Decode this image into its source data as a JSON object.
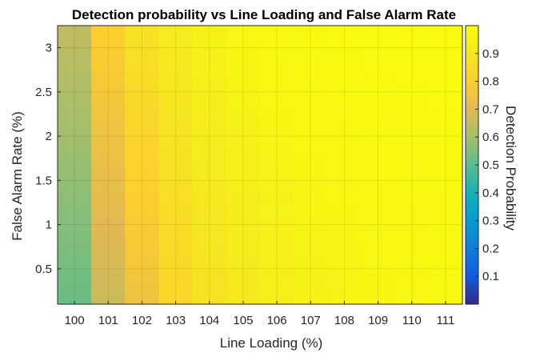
{
  "chart_data": {
    "type": "heatmap",
    "title": "Detection probability vs Line Loading and False Alarm Rate",
    "xlabel": "Line Loading (%)",
    "ylabel": "False Alarm Rate (%)",
    "colorbar_label": "Detection Probability",
    "x_categories": [
      "100",
      "101",
      "102",
      "103",
      "104",
      "105",
      "106",
      "107",
      "108",
      "109",
      "110",
      "111"
    ],
    "y_values": [
      0.1,
      0.25,
      0.4,
      0.55,
      0.7,
      0.85,
      1.0,
      1.15,
      1.3,
      1.45,
      1.6,
      1.75,
      1.9,
      2.05,
      2.2,
      2.35,
      2.5,
      2.65,
      2.8,
      2.95,
      3.1
    ],
    "y_ticks": [
      "0.5",
      "1",
      "1.5",
      "2",
      "2.5",
      "3"
    ],
    "y_tick_values": [
      0.5,
      1,
      1.5,
      2,
      2.5,
      3
    ],
    "ylim": [
      0.1,
      3.25
    ],
    "clim": [
      0,
      1
    ],
    "colorbar_ticks": [
      "0.1",
      "0.2",
      "0.3",
      "0.4",
      "0.5",
      "0.6",
      "0.7",
      "0.8",
      "0.9"
    ],
    "colorbar_tick_values": [
      0.1,
      0.2,
      0.3,
      0.4,
      0.5,
      0.6,
      0.7,
      0.8,
      0.9
    ],
    "colormap": "parula",
    "grid": true,
    "columns_low_to_high_far": {
      "100": [
        0.52,
        0.64
      ],
      "101": [
        0.66,
        0.8
      ],
      "102": [
        0.75,
        0.875
      ],
      "103": [
        0.83,
        0.92
      ],
      "104": [
        0.88,
        0.955
      ],
      "105": [
        0.91,
        0.975
      ],
      "106": [
        0.935,
        0.985
      ],
      "107": [
        0.95,
        0.99
      ],
      "108": [
        0.96,
        0.993
      ],
      "109": [
        0.97,
        0.995
      ],
      "110": [
        0.975,
        0.996
      ],
      "111": [
        0.98,
        0.997
      ]
    }
  }
}
